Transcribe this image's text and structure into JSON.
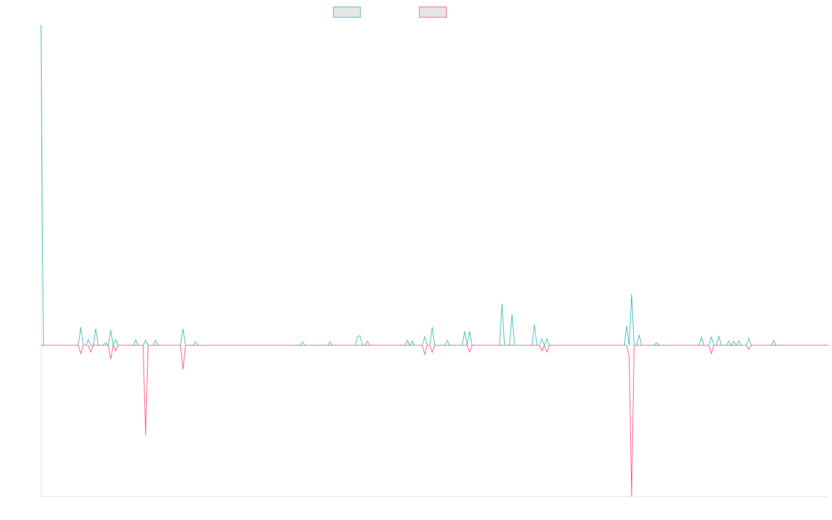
{
  "chart_data": {
    "type": "line",
    "x": [
      0,
      1,
      15,
      16,
      17,
      18,
      19,
      20,
      21,
      22,
      23,
      25,
      26,
      27,
      28,
      29,
      30,
      31,
      37,
      38,
      39,
      41,
      42,
      43,
      45,
      46,
      47,
      56,
      57,
      58,
      61,
      62,
      63,
      104,
      105,
      106,
      115,
      116,
      117,
      126,
      127,
      128,
      129,
      130,
      131,
      132,
      146,
      147,
      148,
      149,
      150,
      153,
      154,
      155,
      156,
      157,
      158,
      162,
      163,
      164,
      169,
      170,
      171,
      172,
      173,
      184,
      185,
      186,
      188,
      189,
      190,
      197,
      198,
      199,
      200,
      201,
      202,
      203,
      204,
      234,
      235,
      236,
      237,
      238,
      239,
      240,
      241,
      246,
      247,
      248,
      264,
      265,
      266,
      268,
      269,
      270,
      271,
      272,
      273,
      275,
      276,
      277,
      278,
      279,
      280,
      281,
      283,
      284,
      285,
      293,
      294,
      295,
      316
    ],
    "series": [
      {
        "color": "#4bc0c0",
        "values": [
          462,
          0,
          0,
          26,
          0,
          0,
          8,
          0,
          0,
          24,
          0,
          0,
          4,
          0,
          22,
          0,
          8,
          0,
          0,
          8,
          0,
          0,
          7,
          0,
          0,
          7,
          0,
          0,
          24,
          0,
          0,
          5,
          0,
          0,
          5,
          0,
          0,
          5,
          0,
          0,
          12,
          14,
          0,
          0,
          6,
          0,
          0,
          7,
          0,
          6,
          0,
          0,
          12,
          0,
          0,
          26,
          0,
          0,
          7,
          0,
          0,
          20,
          0,
          20,
          0,
          0,
          60,
          0,
          0,
          45,
          0,
          0,
          30,
          0,
          0,
          9,
          0,
          9,
          0,
          0,
          28,
          0,
          74,
          0,
          0,
          15,
          0,
          0,
          4,
          0,
          0,
          12,
          0,
          0,
          12,
          0,
          0,
          13,
          0,
          0,
          6,
          0,
          6,
          0,
          6,
          0,
          0,
          10,
          0,
          0,
          7,
          0,
          0
        ]
      },
      {
        "color": "#ff6384",
        "values": [
          0,
          0,
          0,
          -12,
          0,
          0,
          0,
          -10,
          0,
          0,
          0,
          0,
          0,
          0,
          -20,
          0,
          -8,
          0,
          0,
          0,
          0,
          0,
          -130,
          0,
          0,
          0,
          0,
          0,
          -35,
          0,
          0,
          0,
          0,
          0,
          0,
          0,
          0,
          0,
          0,
          0,
          0,
          0,
          0,
          0,
          0,
          0,
          0,
          0,
          0,
          0,
          0,
          0,
          -13,
          0,
          0,
          -10,
          0,
          0,
          0,
          0,
          0,
          0,
          0,
          -10,
          0,
          0,
          0,
          0,
          0,
          0,
          0,
          0,
          0,
          0,
          0,
          -8,
          0,
          -10,
          0,
          0,
          0,
          -15,
          -218,
          0,
          0,
          0,
          0,
          0,
          0,
          0,
          0,
          0,
          0,
          0,
          -12,
          0,
          0,
          0,
          0,
          0,
          0,
          0,
          0,
          0,
          0,
          0,
          0,
          -6,
          0,
          0,
          0,
          0,
          0
        ]
      }
    ],
    "xlim": [
      0,
      316
    ],
    "ylim": [
      -218,
      462
    ]
  }
}
